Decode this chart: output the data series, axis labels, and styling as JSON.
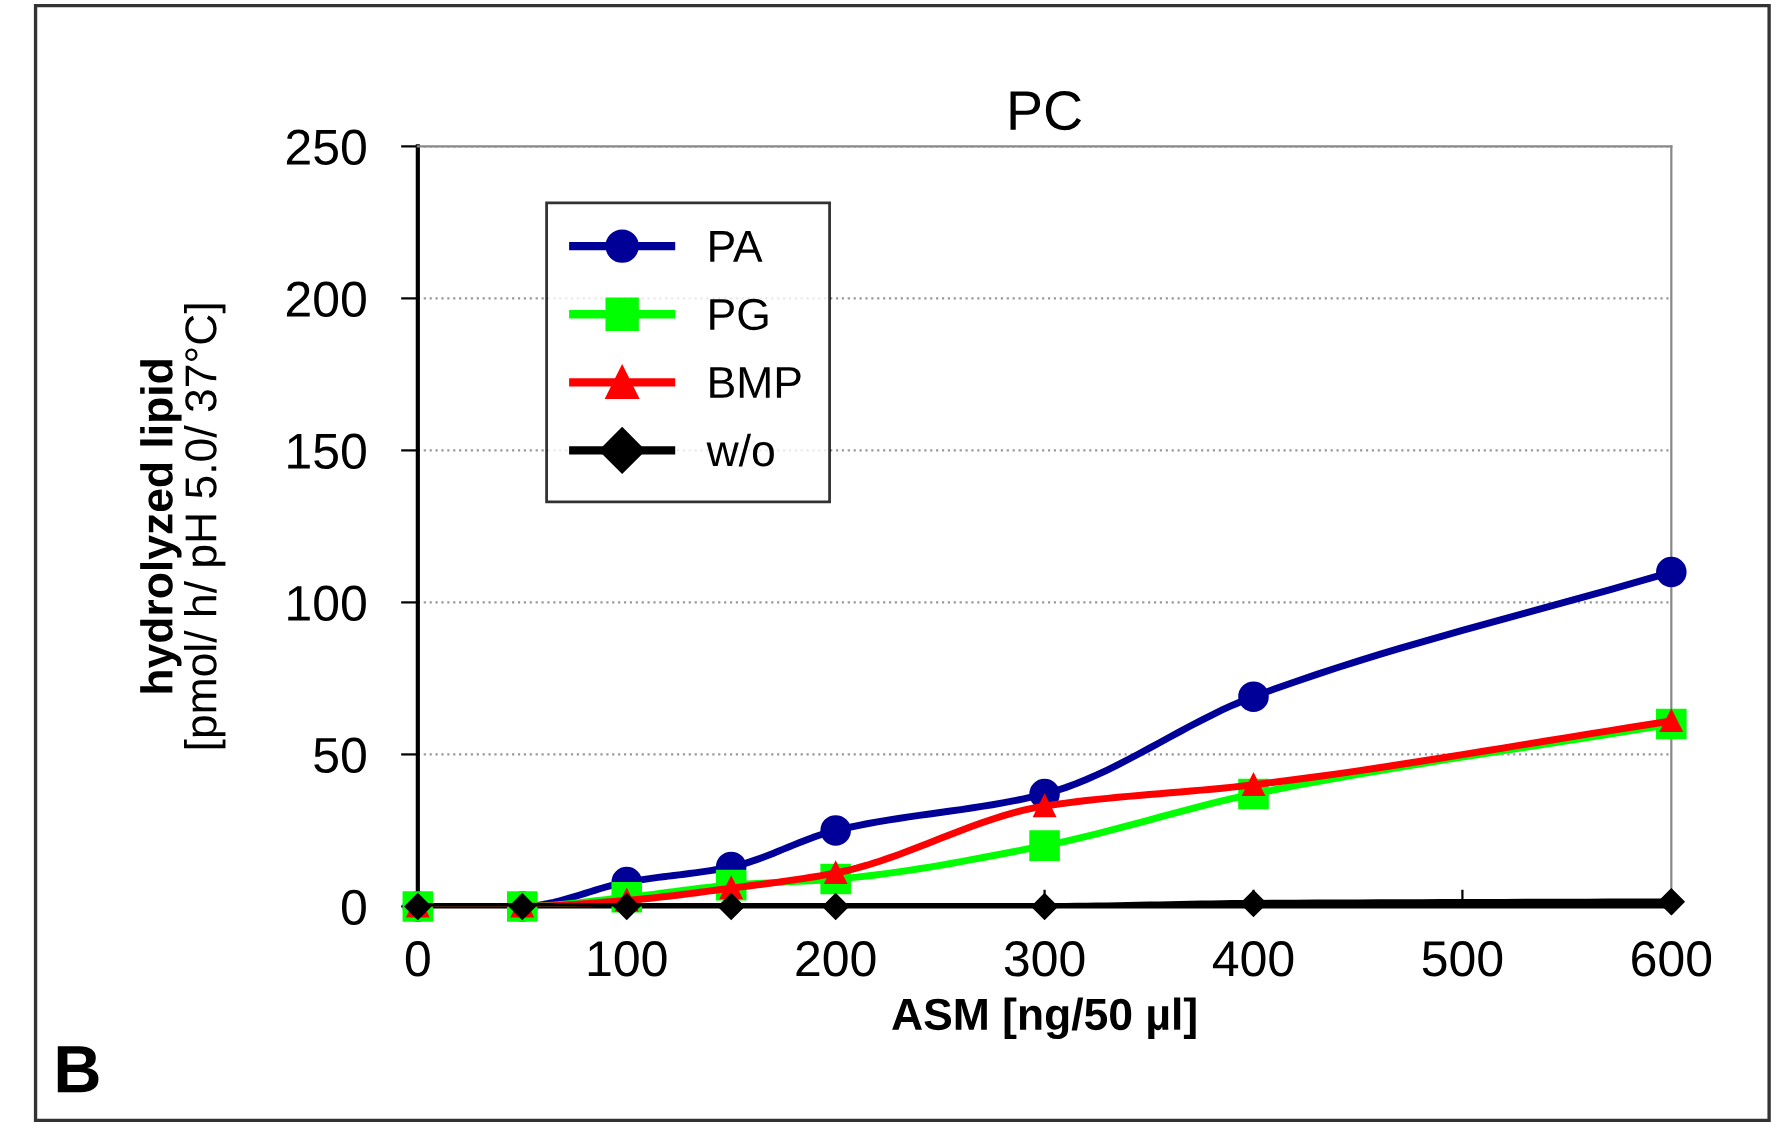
{
  "chart_data": {
    "type": "line",
    "title": "PC",
    "xlabel": "ASM [ng/50 µl]",
    "ylabel": "hydrolyzed lipid\n[pmol/ h/ pH 5.0/ 37°C]",
    "x": [
      0,
      50,
      100,
      150,
      200,
      300,
      400,
      600
    ],
    "series": [
      {
        "name": "PA",
        "color": "#000099",
        "marker": "circle",
        "values": [
          0,
          0,
          8,
          13,
          25,
          37,
          69,
          110
        ]
      },
      {
        "name": "PG",
        "color": "#00ff00",
        "marker": "square",
        "values": [
          0,
          0,
          3,
          7,
          9,
          20,
          37,
          60
        ]
      },
      {
        "name": "BMP",
        "color": "#ff0000",
        "marker": "triangle",
        "values": [
          0,
          0,
          2,
          6,
          11,
          33,
          40,
          61
        ]
      },
      {
        "name": "w/o",
        "color": "#000000",
        "marker": "diamond",
        "values": [
          0,
          0,
          0,
          0,
          0,
          0,
          1,
          1.5
        ]
      }
    ],
    "xlim": [
      0,
      600
    ],
    "xticks": [
      0,
      100,
      200,
      300,
      400,
      500,
      600
    ],
    "ylim": [
      0,
      250
    ],
    "yticks": [
      0,
      50,
      100,
      150,
      200,
      250
    ],
    "grid": "y",
    "legend": "top left",
    "line_style": "solid",
    "annotations": [
      "B"
    ]
  }
}
